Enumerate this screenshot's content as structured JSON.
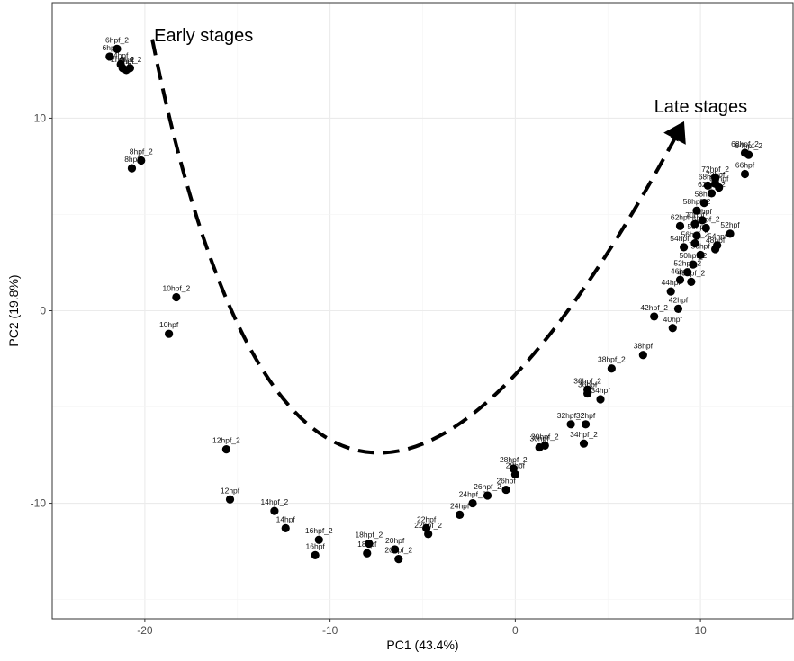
{
  "chart_data": {
    "type": "scatter",
    "title": "",
    "xlabel": "PC1 (43.4%)",
    "ylabel": "PC2 (19.8%)",
    "xlim": [
      -25,
      15
    ],
    "ylim": [
      -16,
      16
    ],
    "x_ticks": [
      -20,
      -10,
      0,
      10
    ],
    "y_ticks": [
      -10,
      0,
      10
    ],
    "grid": true,
    "legend": "none",
    "point_color": "#000000",
    "series": [
      {
        "points": [
          {
            "label": "6hpf",
            "x": -21.9,
            "y": 13.2
          },
          {
            "label": "6hpf_2",
            "x": -21.5,
            "y": 13.6
          },
          {
            "label": "4hpf",
            "x": -21.3,
            "y": 12.8
          },
          {
            "label": "4hpf_2",
            "x": -20.8,
            "y": 12.6
          },
          {
            "label": "2hpf",
            "x": -21.0,
            "y": 12.5
          },
          {
            "label": "2hpf_2",
            "x": -21.2,
            "y": 12.6
          },
          {
            "label": "8hpf_2",
            "x": -20.2,
            "y": 7.8
          },
          {
            "label": "8hpf",
            "x": -20.7,
            "y": 7.4
          },
          {
            "label": "10hpf_2",
            "x": -18.3,
            "y": 0.7
          },
          {
            "label": "10hpf",
            "x": -18.7,
            "y": -1.2
          },
          {
            "label": "12hpf_2",
            "x": -15.6,
            "y": -7.2
          },
          {
            "label": "12hpf",
            "x": -15.4,
            "y": -9.8
          },
          {
            "label": "14hpf_2",
            "x": -13.0,
            "y": -10.4
          },
          {
            "label": "14hpf",
            "x": -12.4,
            "y": -11.3
          },
          {
            "label": "16hpf_2",
            "x": -10.6,
            "y": -11.9
          },
          {
            "label": "16hpf",
            "x": -10.8,
            "y": -12.7
          },
          {
            "label": "18hpf_2",
            "x": -7.9,
            "y": -12.1
          },
          {
            "label": "18hpf",
            "x": -8.0,
            "y": -12.6
          },
          {
            "label": "20hpf",
            "x": -6.5,
            "y": -12.4
          },
          {
            "label": "20hpf_2",
            "x": -6.3,
            "y": -12.9
          },
          {
            "label": "22hpf",
            "x": -4.8,
            "y": -11.3
          },
          {
            "label": "22hpf_2",
            "x": -4.7,
            "y": -11.6
          },
          {
            "label": "24hpf",
            "x": -3.0,
            "y": -10.6
          },
          {
            "label": "24hpf_2",
            "x": -2.3,
            "y": -10.0
          },
          {
            "label": "26hpf_2",
            "x": -1.5,
            "y": -9.6
          },
          {
            "label": "26hpf",
            "x": -0.5,
            "y": -9.3
          },
          {
            "label": "28hpf_2",
            "x": -0.1,
            "y": -8.2
          },
          {
            "label": "28hpf",
            "x": 0.0,
            "y": -8.5
          },
          {
            "label": "30hpf",
            "x": 1.3,
            "y": -7.1
          },
          {
            "label": "30hpf_2",
            "x": 1.6,
            "y": -7.0
          },
          {
            "label": "32hpf_2",
            "x": 3.0,
            "y": -5.9
          },
          {
            "label": "32hpf",
            "x": 3.8,
            "y": -5.9
          },
          {
            "label": "34hpf_2",
            "x": 3.7,
            "y": -6.9
          },
          {
            "label": "34hpf",
            "x": 4.6,
            "y": -4.6
          },
          {
            "label": "36hpf_2",
            "x": 3.9,
            "y": -4.1
          },
          {
            "label": "36hpf",
            "x": 3.9,
            "y": -4.3
          },
          {
            "label": "38hpf_2",
            "x": 5.2,
            "y": -3.0
          },
          {
            "label": "38hpf",
            "x": 6.9,
            "y": -2.3
          },
          {
            "label": "42hpf_2",
            "x": 7.5,
            "y": -0.3
          },
          {
            "label": "40hpf",
            "x": 8.5,
            "y": -0.9
          },
          {
            "label": "42hpf",
            "x": 8.8,
            "y": 0.1
          },
          {
            "label": "44hpf",
            "x": 8.4,
            "y": 1.0
          },
          {
            "label": "46hpf",
            "x": 8.9,
            "y": 1.6
          },
          {
            "label": "48hpf_2",
            "x": 9.5,
            "y": 1.5
          },
          {
            "label": "52hpf_2",
            "x": 9.3,
            "y": 2.0
          },
          {
            "label": "50hpf_2",
            "x": 9.6,
            "y": 2.4
          },
          {
            "label": "50hpf",
            "x": 10.0,
            "y": 2.9
          },
          {
            "label": "48hpf",
            "x": 10.8,
            "y": 3.2
          },
          {
            "label": "52hpf",
            "x": 11.6,
            "y": 4.0
          },
          {
            "label": "54hpf",
            "x": 10.9,
            "y": 3.4
          },
          {
            "label": "54hpf_2",
            "x": 9.1,
            "y": 3.3
          },
          {
            "label": "56hpf_2",
            "x": 9.7,
            "y": 3.5
          },
          {
            "label": "56hpf",
            "x": 9.8,
            "y": 3.9
          },
          {
            "label": "62hpf",
            "x": 8.9,
            "y": 4.4
          },
          {
            "label": "70hpf",
            "x": 9.7,
            "y": 4.5
          },
          {
            "label": "60hpf_2",
            "x": 10.3,
            "y": 4.3
          },
          {
            "label": "60hpf",
            "x": 10.1,
            "y": 4.7
          },
          {
            "label": "58hpf",
            "x": 10.2,
            "y": 5.6
          },
          {
            "label": "58hpf_2",
            "x": 9.8,
            "y": 5.2
          },
          {
            "label": "62hpf_2",
            "x": 10.6,
            "y": 6.1
          },
          {
            "label": "68hpf",
            "x": 10.4,
            "y": 6.5
          },
          {
            "label": "72hpf",
            "x": 10.8,
            "y": 6.6
          },
          {
            "label": "72hpf_2",
            "x": 10.8,
            "y": 6.9
          },
          {
            "label": "64hpf",
            "x": 11.0,
            "y": 6.4
          },
          {
            "label": "66hpf",
            "x": 12.4,
            "y": 7.1
          },
          {
            "label": "68hpf_2",
            "x": 12.4,
            "y": 8.2
          },
          {
            "label": "64hpf_2",
            "x": 12.6,
            "y": 8.1
          }
        ]
      }
    ],
    "annotations": [
      {
        "text": "Early stages",
        "x": -19.5,
        "y": 14.0
      },
      {
        "text": "Late stages",
        "x": 7.5,
        "y": 10.3
      }
    ],
    "trend_arrow": {
      "style": "dashed",
      "path": [
        [
          -19.6,
          14.1
        ],
        [
          -8.3,
          -7.3
        ],
        [
          8.7,
          9.1
        ]
      ]
    }
  }
}
